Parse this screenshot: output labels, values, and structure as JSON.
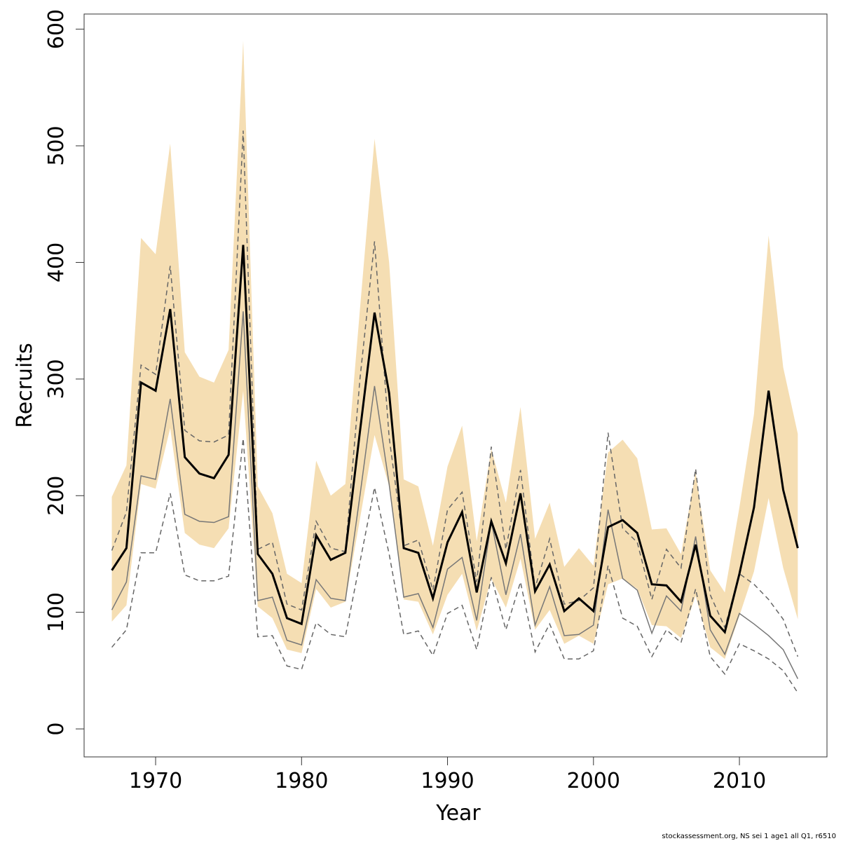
{
  "chart_data": {
    "type": "line",
    "xlabel": "Year",
    "ylabel": "Recruits",
    "footnote": "stockassessment.org, NS sei 1 age1 all Q1, r6510",
    "x": [
      1967,
      1968,
      1969,
      1970,
      1971,
      1972,
      1973,
      1974,
      1975,
      1976,
      1977,
      1978,
      1979,
      1980,
      1981,
      1982,
      1983,
      1984,
      1985,
      1986,
      1987,
      1988,
      1989,
      1990,
      1991,
      1992,
      1993,
      1994,
      1995,
      1996,
      1997,
      1998,
      1999,
      2000,
      2001,
      2002,
      2003,
      2004,
      2005,
      2006,
      2007,
      2008,
      2009,
      2010,
      2011,
      2012,
      2013,
      2014
    ],
    "band": {
      "color": "#f5deb3",
      "upper": [
        199,
        226,
        421,
        407,
        502,
        323,
        302,
        297,
        325,
        590,
        208,
        185,
        133,
        125,
        230,
        200,
        210,
        360,
        506,
        400,
        214,
        208,
        157,
        225,
        260,
        161,
        240,
        194,
        276,
        163,
        194,
        139,
        155,
        140,
        237,
        248,
        232,
        171,
        172,
        150,
        220,
        136,
        117,
        190,
        270,
        423,
        310,
        253
      ],
      "lower": [
        92,
        106,
        210,
        206,
        258,
        168,
        158,
        155,
        172,
        290,
        105,
        95,
        68,
        65,
        120,
        104,
        109,
        180,
        252,
        208,
        111,
        109,
        81,
        115,
        133,
        84,
        129,
        104,
        146,
        85,
        102,
        73,
        80,
        73,
        124,
        129,
        120,
        89,
        88,
        78,
        114,
        70,
        60,
        97,
        135,
        198,
        138,
        94
      ]
    },
    "series": [
      {
        "color": "#777777",
        "width": 1.5,
        "dash": "none",
        "values": [
          102,
          126,
          217,
          214,
          283,
          184,
          178,
          177,
          182,
          358,
          110,
          113,
          76,
          72,
          128,
          112,
          110,
          200,
          294,
          210,
          113,
          116,
          87,
          137,
          147,
          93,
          178,
          115,
          167,
          89,
          122,
          80,
          81,
          89,
          188,
          129,
          119,
          82,
          114,
          101,
          165,
          85,
          64,
          99,
          90,
          80,
          68,
          43
        ]
      },
      {
        "color": "#666666",
        "width": 1.5,
        "dash": "7,5",
        "values": [
          153,
          186,
          312,
          304,
          397,
          256,
          247,
          246,
          252,
          513,
          154,
          160,
          107,
          102,
          178,
          155,
          152,
          300,
          418,
          250,
          157,
          162,
          119,
          188,
          203,
          126,
          242,
          154,
          222,
          121,
          163,
          107,
          110,
          121,
          254,
          172,
          160,
          111,
          154,
          138,
          223,
          115,
          87,
          133,
          124,
          111,
          94,
          62
        ]
      },
      {
        "color": "#666666",
        "width": 1.5,
        "dash": "7,5",
        "values": [
          70,
          85,
          151,
          151,
          202,
          132,
          127,
          127,
          131,
          249,
          79,
          80,
          54,
          51,
          91,
          81,
          79,
          143,
          207,
          150,
          81,
          84,
          63,
          99,
          106,
          68,
          130,
          85,
          126,
          66,
          90,
          60,
          60,
          67,
          140,
          95,
          88,
          62,
          85,
          74,
          120,
          62,
          47,
          73,
          67,
          60,
          50,
          31
        ]
      },
      {
        "color": "#000000",
        "width": 3,
        "dash": "none",
        "values": [
          136,
          155,
          297,
          290,
          360,
          233,
          219,
          215,
          235,
          415,
          150,
          133,
          95,
          90,
          166,
          145,
          151,
          255,
          357,
          288,
          155,
          151,
          112,
          160,
          186,
          117,
          178,
          142,
          202,
          118,
          141,
          101,
          112,
          101,
          173,
          179,
          168,
          124,
          123,
          109,
          158,
          97,
          83,
          133,
          190,
          290,
          205,
          155
        ]
      }
    ],
    "xlim": [
      1965.1,
      2016.0
    ],
    "ylim": [
      -24,
      613
    ],
    "xticks": [
      1970,
      1980,
      1990,
      2000,
      2010
    ],
    "yticks": [
      0,
      100,
      200,
      300,
      400,
      500,
      600
    ]
  }
}
